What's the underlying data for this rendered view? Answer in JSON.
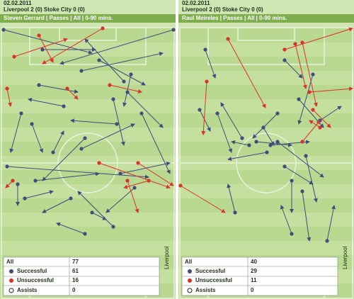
{
  "panels": [
    {
      "date": "02.02.2011",
      "match": "Liverpool 2 (0) Stoke City 0 (0)",
      "subtitle": "Steven Gerrard | Passes | All | 0-90 mins.",
      "direction": "Liverpool",
      "table": {
        "rows": [
          [
            "All",
            77
          ],
          [
            "Successful",
            61
          ],
          [
            "Unsuccessful",
            16
          ],
          [
            "Assists",
            0
          ]
        ]
      }
    },
    {
      "date": "02.02.2011",
      "match": "Liverpool 2 (0) Stoke City 0 (0)",
      "subtitle": "Raul Meireles | Passes | All | 0-90 mins.",
      "direction": "Liverpool",
      "table": {
        "rows": [
          [
            "All",
            40
          ],
          [
            "Successful",
            29
          ],
          [
            "Unsuccessful",
            11
          ],
          [
            "Assists",
            0
          ]
        ]
      }
    }
  ]
}
